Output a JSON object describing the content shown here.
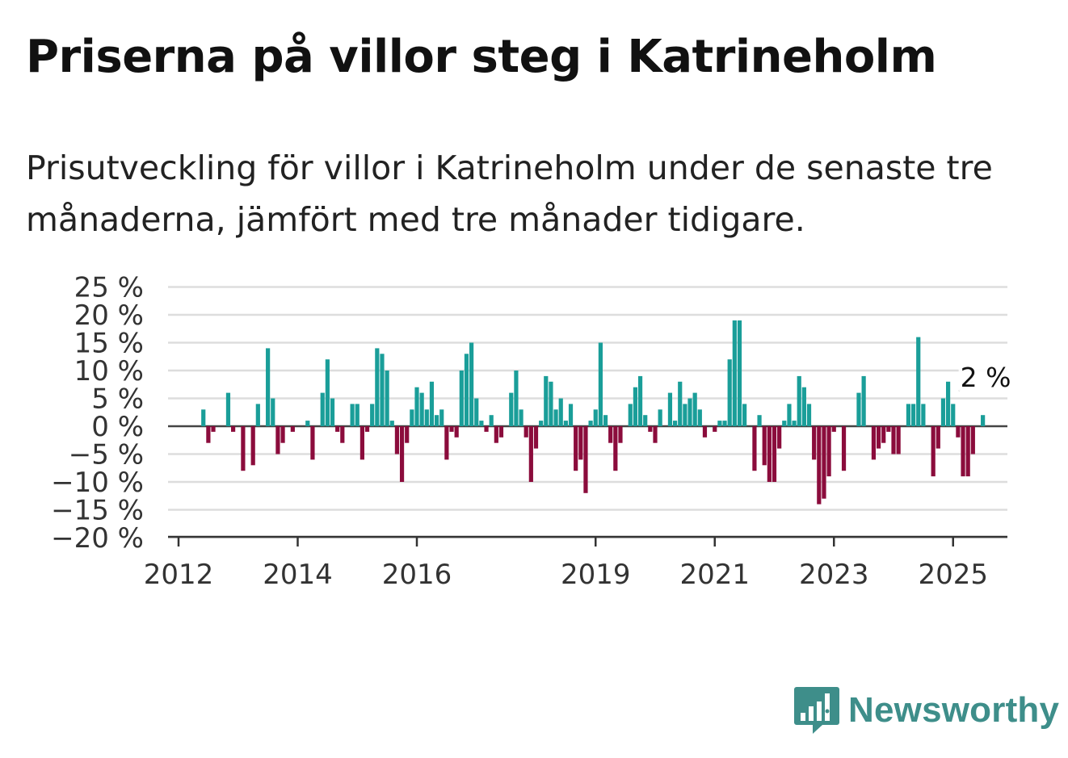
{
  "title": "Priserna på villor steg i Katrineholm",
  "subtitle": "Prisutveckling för villor i Katrineholm under de senaste tre månaderna, jämfört med tre månader tidigare.",
  "brand": {
    "name": "Newsworthy",
    "icon": "bar-chart-icon"
  },
  "colors": {
    "positive": "#1a9e99",
    "negative": "#8b0c3c",
    "grid": "#dddddd",
    "zero": "#444444"
  },
  "chart_data": {
    "type": "bar",
    "title": "",
    "xlabel": "",
    "ylabel": "",
    "ylim": [
      -20,
      25
    ],
    "y_ticks": [
      25,
      20,
      15,
      10,
      5,
      0,
      -5,
      -10,
      -15,
      -20
    ],
    "y_tick_labels": [
      "25 %",
      "20 %",
      "15 %",
      "10 %",
      "5 %",
      "0 %",
      "−5 %",
      "−10 %",
      "−15 %",
      "−20 %"
    ],
    "x_ticks": [
      {
        "label": "2012",
        "date": "2012-01"
      },
      {
        "label": "2014",
        "date": "2014-01"
      },
      {
        "label": "2016",
        "date": "2016-01"
      },
      {
        "label": "2019",
        "date": "2019-01"
      },
      {
        "label": "2021",
        "date": "2021-01"
      },
      {
        "label": "2023",
        "date": "2023-01"
      },
      {
        "label": "2025",
        "date": "2025-01"
      }
    ],
    "last_value_label": "2 %",
    "grid": true,
    "series": [
      {
        "start": "2012-01",
        "values": [
          0,
          0,
          0,
          0,
          0,
          3,
          -3,
          -1,
          0,
          0,
          6,
          -1,
          0,
          -8,
          0,
          -7,
          4,
          0,
          14,
          5,
          -5,
          -3,
          0,
          -1,
          0,
          0,
          1,
          -6,
          0,
          6,
          12,
          5,
          -1,
          -3,
          0,
          4,
          4,
          -6,
          -1,
          4,
          14,
          13,
          10,
          1,
          -5,
          -10,
          -3,
          3,
          7,
          6,
          3,
          8,
          2,
          3,
          -6,
          -1,
          -2,
          10,
          13,
          15,
          5,
          1,
          -1,
          2,
          -3,
          -2,
          0,
          6,
          10,
          3,
          -2,
          -10,
          -4,
          1,
          9,
          8,
          3,
          5,
          1,
          4,
          -8,
          -6,
          -12,
          1,
          3,
          15,
          2,
          -3,
          -8,
          -3,
          0,
          4,
          7,
          9,
          2,
          -1,
          -3,
          3,
          0,
          6,
          1,
          8,
          4,
          5,
          6,
          3,
          -2,
          0,
          -1,
          1,
          1,
          12,
          19,
          19,
          4,
          0,
          -8,
          2,
          -7,
          -10,
          -10,
          -4,
          1,
          4,
          1,
          9,
          7,
          4,
          -6,
          -14,
          -13,
          -9,
          -1,
          0,
          -8,
          0,
          0,
          6,
          9,
          0,
          -6,
          -4,
          -3,
          -1,
          -5,
          -5,
          0,
          4,
          4,
          16,
          4,
          0,
          -9,
          -4,
          5,
          8,
          4,
          -2,
          -9,
          -9,
          -5,
          0,
          2
        ]
      }
    ]
  }
}
